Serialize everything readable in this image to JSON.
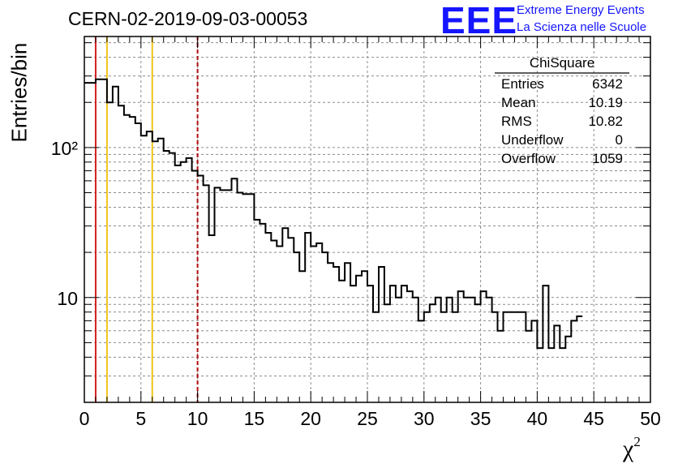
{
  "colors": {
    "histogram": "#000000",
    "grid": "#8c8c8c",
    "red_line": "#d42020",
    "yellow_line": "#f0c419",
    "cut_line": "#b01010",
    "logo": "#1515ff"
  },
  "logo": {
    "mark": "EEE",
    "line1": "Extreme Energy Events",
    "line2": "La Scienza nelle Scuole"
  },
  "chart_data": {
    "type": "histogram",
    "title": "CERN-02-2019-09-03-00053",
    "xlabel": "χ",
    "xlabel_sup": "2",
    "ylabel": "Entries/bin",
    "yscale": "log",
    "xlim": [
      0,
      50
    ],
    "ylim": [
      2,
      550
    ],
    "grid": true,
    "bin_width": 0.5,
    "x_ticks": [
      0,
      5,
      10,
      15,
      20,
      25,
      30,
      35,
      40,
      45,
      50
    ],
    "x_tick_labels": [
      "0",
      "5",
      "10",
      "15",
      "20",
      "25",
      "30",
      "35",
      "40",
      "45",
      "50"
    ],
    "y_ticks": [
      10,
      100
    ],
    "y_tick_labels": [
      "10",
      "10²"
    ],
    "vertical_lines": [
      {
        "x": 1,
        "color": "red"
      },
      {
        "x": 2,
        "color": "yellow"
      },
      {
        "x": 6,
        "color": "yellow"
      },
      {
        "x": 10,
        "color": "red",
        "style": "dashed"
      }
    ],
    "values": [
      270,
      270,
      285,
      285,
      200,
      255,
      190,
      165,
      160,
      145,
      120,
      128,
      110,
      115,
      95,
      92,
      76,
      80,
      85,
      70,
      65,
      56,
      26,
      54,
      52,
      52,
      62,
      50,
      49,
      49,
      33,
      31,
      27,
      24,
      22,
      29,
      25,
      20,
      15,
      27,
      22,
      23,
      20,
      17,
      16,
      13,
      17,
      12,
      14,
      15,
      12,
      8,
      16,
      9,
      12,
      10,
      12,
      11,
      10,
      7,
      8,
      9,
      10,
      8,
      10,
      8,
      11,
      10,
      10,
      9,
      11,
      10,
      8,
      6,
      8,
      8,
      8,
      8,
      6,
      7,
      4.6,
      12,
      4.6,
      6.5,
      4.6,
      5.5,
      7,
      7.5
    ],
    "stats": {
      "title": "ChiSquare",
      "rows": [
        {
          "label": "Entries",
          "value": "6342"
        },
        {
          "label": "Mean",
          "value": "10.19"
        },
        {
          "label": "RMS",
          "value": "10.82"
        },
        {
          "label": "Underflow",
          "value": "0"
        },
        {
          "label": "Overflow",
          "value": "1059"
        }
      ]
    }
  }
}
